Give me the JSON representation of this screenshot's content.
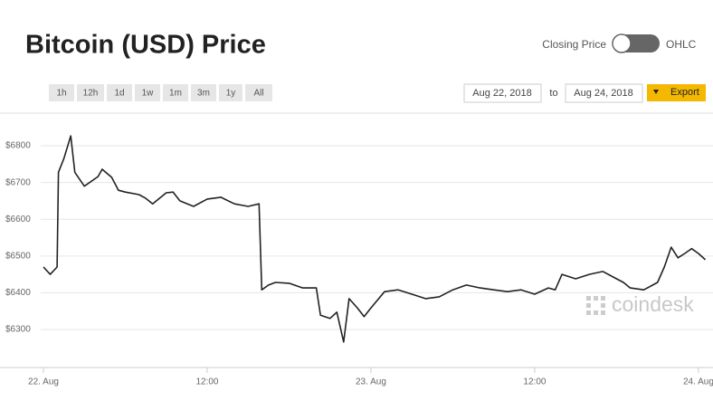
{
  "chart_data": {
    "type": "line",
    "title": "Bitcoin (USD) Price",
    "x": [
      0,
      0.5,
      1,
      1.1,
      1.5,
      2,
      2.3,
      3,
      4,
      4.3,
      5,
      5.5,
      6,
      7,
      7.5,
      8,
      9,
      9.5,
      10,
      11,
      12,
      13,
      14,
      15,
      15.8,
      16,
      16.5,
      17,
      18,
      19,
      20,
      20.3,
      21,
      21.5,
      22,
      22.4,
      23,
      23.5,
      24,
      25,
      26,
      27,
      28,
      29,
      30,
      31,
      32,
      33,
      34,
      35,
      36,
      37,
      37.5,
      38,
      39,
      40,
      41,
      42,
      42.5,
      43,
      44,
      45,
      45.5,
      46,
      46.5,
      47,
      47.5,
      48,
      48.5
    ],
    "series": [
      {
        "name": "Closing Price",
        "color": "#222222",
        "values": [
          6470,
          6450,
          6470,
          6728,
          6765,
          6827,
          6728,
          6690,
          6716,
          6736,
          6714,
          6679,
          6674,
          6667,
          6657,
          6642,
          6672,
          6674,
          6650,
          6635,
          6655,
          6660,
          6642,
          6635,
          6642,
          6408,
          6421,
          6428,
          6426,
          6413,
          6413,
          6339,
          6330,
          6347,
          6266,
          6384,
          6359,
          6335,
          6359,
          6403,
          6408,
          6396,
          6384,
          6389,
          6408,
          6421,
          6413,
          6408,
          6403,
          6408,
          6396,
          6413,
          6408,
          6450,
          6438,
          6450,
          6458,
          6438,
          6428,
          6413,
          6408,
          6428,
          6470,
          6524,
          6495,
          6507,
          6520,
          6507,
          6490
        ]
      }
    ],
    "xlim": [
      0,
      49
    ],
    "xticks": [
      {
        "value": 0,
        "label": "22. Aug"
      },
      {
        "value": 12,
        "label": "12:00"
      },
      {
        "value": 24,
        "label": "23. Aug"
      },
      {
        "value": 36,
        "label": "12:00"
      },
      {
        "value": 48,
        "label": "24. Aug"
      }
    ],
    "ylim": [
      6200,
      6890
    ],
    "yticks": [
      {
        "value": 6300,
        "label": "$6300"
      },
      {
        "value": 6400,
        "label": "$6400"
      },
      {
        "value": 6500,
        "label": "$6500"
      },
      {
        "value": 6600,
        "label": "$6600"
      },
      {
        "value": 6700,
        "label": "$6700"
      },
      {
        "value": 6800,
        "label": "$6800"
      }
    ],
    "grid": true,
    "watermark": "coindesk"
  },
  "controls": {
    "toggle_left": "Closing Price",
    "toggle_right": "OHLC",
    "ranges": [
      "1h",
      "12h",
      "1d",
      "1w",
      "1m",
      "3m",
      "1y",
      "All"
    ],
    "date_from": "Aug 22, 2018",
    "date_sep": "to",
    "date_to": "Aug 24, 2018",
    "export": "Export"
  }
}
